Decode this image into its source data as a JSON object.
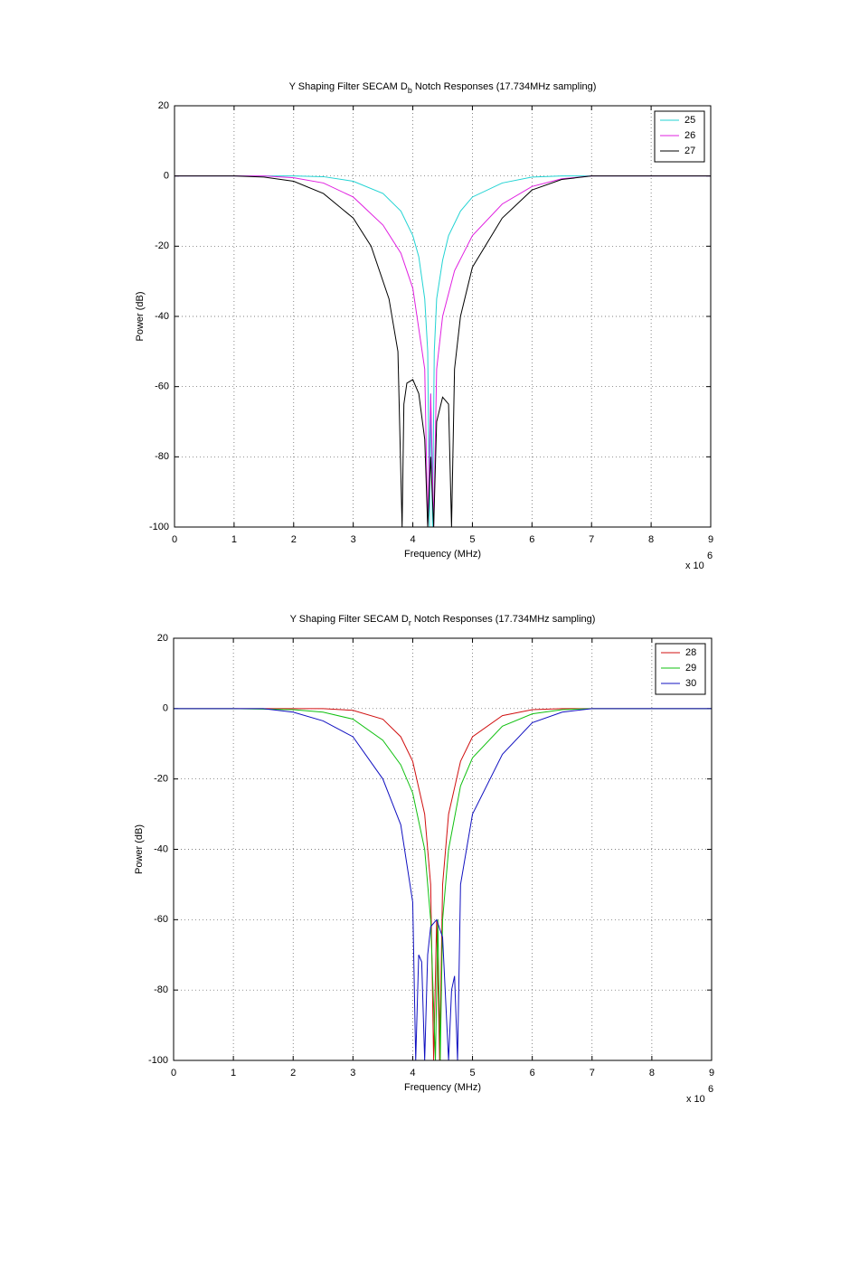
{
  "chart_data": [
    {
      "type": "line",
      "title": "Y Shaping Filter SECAM D",
      "title_subscript": "b",
      "title_suffix": " Notch Responses (17.734MHz sampling)",
      "xlabel": "Frequency (MHz)",
      "ylabel": "Power (dB)",
      "x_multiplier": "x 10",
      "x_multiplier_exponent": "6",
      "xlim": [
        0,
        9
      ],
      "xticks": [
        0,
        1,
        2,
        3,
        4,
        5,
        6,
        7,
        8,
        9
      ],
      "ylim": [
        -100,
        20
      ],
      "yticks": [
        -100,
        -80,
        -60,
        -40,
        -20,
        0,
        20
      ],
      "grid": true,
      "legend": "upper right",
      "series": [
        {
          "name": "25",
          "color": "#22d3d3",
          "x": [
            0,
            1,
            2,
            2.5,
            3,
            3.5,
            3.8,
            4.0,
            4.1,
            4.2,
            4.25,
            4.28,
            4.3,
            4.33,
            4.36,
            4.4,
            4.5,
            4.6,
            4.8,
            5.0,
            5.5,
            6.0,
            6.5,
            7,
            8,
            9
          ],
          "values": [
            0,
            0,
            0,
            -0.2,
            -1.5,
            -5,
            -10,
            -17,
            -23,
            -35,
            -50,
            -100,
            -62,
            -100,
            -50,
            -35,
            -24,
            -17,
            -10,
            -6,
            -2,
            -0.3,
            0,
            0,
            0,
            0
          ]
        },
        {
          "name": "26",
          "color": "#e020e0",
          "x": [
            0,
            1,
            1.5,
            2,
            2.5,
            3,
            3.5,
            3.8,
            4.0,
            4.2,
            4.25,
            4.3,
            4.35,
            4.4,
            4.5,
            4.7,
            5,
            5.5,
            6,
            6.5,
            7,
            8,
            9
          ],
          "values": [
            0,
            0,
            0,
            -0.5,
            -2,
            -6,
            -14,
            -22,
            -32,
            -55,
            -100,
            -62,
            -100,
            -55,
            -40,
            -27,
            -17,
            -8,
            -3,
            -0.8,
            0,
            0,
            0
          ]
        },
        {
          "name": "27",
          "color": "#000000",
          "x": [
            0,
            1,
            1.5,
            2,
            2.5,
            3,
            3.3,
            3.6,
            3.75,
            3.82,
            3.85,
            3.9,
            4.0,
            4.1,
            4.2,
            4.25,
            4.3,
            4.35,
            4.4,
            4.5,
            4.6,
            4.65,
            4.7,
            4.8,
            5,
            5.5,
            6,
            6.5,
            7,
            8,
            9
          ],
          "values": [
            0,
            0,
            -0.3,
            -1.5,
            -5,
            -12,
            -20,
            -35,
            -50,
            -100,
            -65,
            -59,
            -58,
            -62,
            -75,
            -100,
            -80,
            -100,
            -70,
            -63,
            -65,
            -100,
            -55,
            -40,
            -26,
            -12,
            -4,
            -1,
            0,
            0,
            0
          ]
        }
      ]
    },
    {
      "type": "line",
      "title": "Y Shaping Filter SECAM D",
      "title_subscript": "r",
      "title_suffix": " Notch Responses (17.734MHz sampling)",
      "xlabel": "Frequency (MHz)",
      "ylabel": "Power (dB)",
      "x_multiplier": "x 10",
      "x_multiplier_exponent": "6",
      "xlim": [
        0,
        9
      ],
      "xticks": [
        0,
        1,
        2,
        3,
        4,
        5,
        6,
        7,
        8,
        9
      ],
      "ylim": [
        -100,
        20
      ],
      "yticks": [
        -100,
        -80,
        -60,
        -40,
        -20,
        0,
        20
      ],
      "grid": true,
      "legend": "upper right",
      "series": [
        {
          "name": "28",
          "color": "#d01010",
          "x": [
            0,
            1,
            2,
            2.5,
            3,
            3.5,
            3.8,
            4.0,
            4.2,
            4.3,
            4.35,
            4.4,
            4.45,
            4.5,
            4.6,
            4.8,
            5,
            5.5,
            6,
            6.5,
            7,
            8,
            9
          ],
          "values": [
            0,
            0,
            0,
            0,
            -0.5,
            -3,
            -8,
            -15,
            -30,
            -50,
            -100,
            -60,
            -100,
            -50,
            -30,
            -15,
            -8,
            -2,
            -0.3,
            0,
            0,
            0,
            0
          ]
        },
        {
          "name": "29",
          "color": "#10c010",
          "x": [
            0,
            1,
            2,
            2.5,
            3,
            3.5,
            3.8,
            4.0,
            4.2,
            4.3,
            4.38,
            4.42,
            4.46,
            4.5,
            4.6,
            4.8,
            5,
            5.5,
            6,
            6.5,
            7,
            8,
            9
          ],
          "values": [
            0,
            0,
            -0.3,
            -1,
            -3,
            -9,
            -16,
            -24,
            -40,
            -60,
            -100,
            -60,
            -100,
            -60,
            -40,
            -22,
            -14,
            -5,
            -1.5,
            -0.3,
            0,
            0,
            0
          ]
        },
        {
          "name": "30",
          "color": "#1010c0",
          "x": [
            0,
            1,
            1.5,
            2,
            2.5,
            3,
            3.5,
            3.8,
            4.0,
            4.05,
            4.1,
            4.15,
            4.2,
            4.25,
            4.3,
            4.4,
            4.5,
            4.6,
            4.65,
            4.7,
            4.75,
            4.8,
            5,
            5.5,
            6,
            6.5,
            7,
            8,
            9
          ],
          "values": [
            0,
            0,
            0,
            -1,
            -3.5,
            -8,
            -20,
            -33,
            -55,
            -100,
            -70,
            -72,
            -100,
            -70,
            -62,
            -60,
            -65,
            -100,
            -80,
            -76,
            -100,
            -50,
            -30,
            -13,
            -4,
            -1,
            0,
            0,
            0
          ]
        }
      ]
    }
  ]
}
